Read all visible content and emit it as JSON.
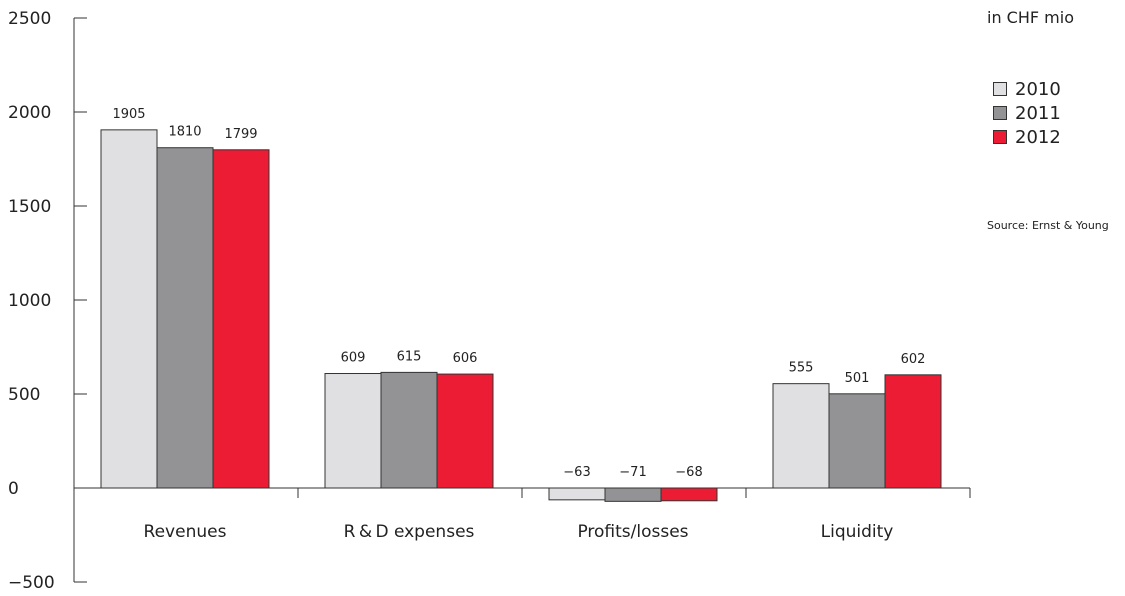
{
  "chart_data": {
    "type": "bar",
    "categories": [
      "Revenues",
      "R & D expenses",
      "Profits/losses",
      "Liquidity"
    ],
    "series": [
      {
        "name": "2010",
        "values": [
          1905,
          609,
          -63,
          555
        ],
        "labels": [
          "1905",
          "609",
          "−63",
          "555"
        ],
        "color": "#e0e0e2"
      },
      {
        "name": "2011",
        "values": [
          1810,
          615,
          -71,
          501
        ],
        "labels": [
          "1810",
          "615",
          "−71",
          "501"
        ],
        "color": "#939396"
      },
      {
        "name": "2012",
        "values": [
          1799,
          606,
          -68,
          602
        ],
        "labels": [
          "1799",
          "606",
          "−68",
          "602"
        ],
        "color": "#ec1c34"
      }
    ],
    "ylim": [
      -500,
      2500
    ],
    "yticks": [
      -500,
      0,
      500,
      1000,
      1500,
      2000,
      2500
    ],
    "ytick_labels": [
      "−500",
      "0",
      "500",
      "1000",
      "1500",
      "2000",
      "2500"
    ],
    "unit_note": "in CHF mio",
    "source": "Source: Ernst & Young",
    "legend_position": "right",
    "grid": false
  }
}
